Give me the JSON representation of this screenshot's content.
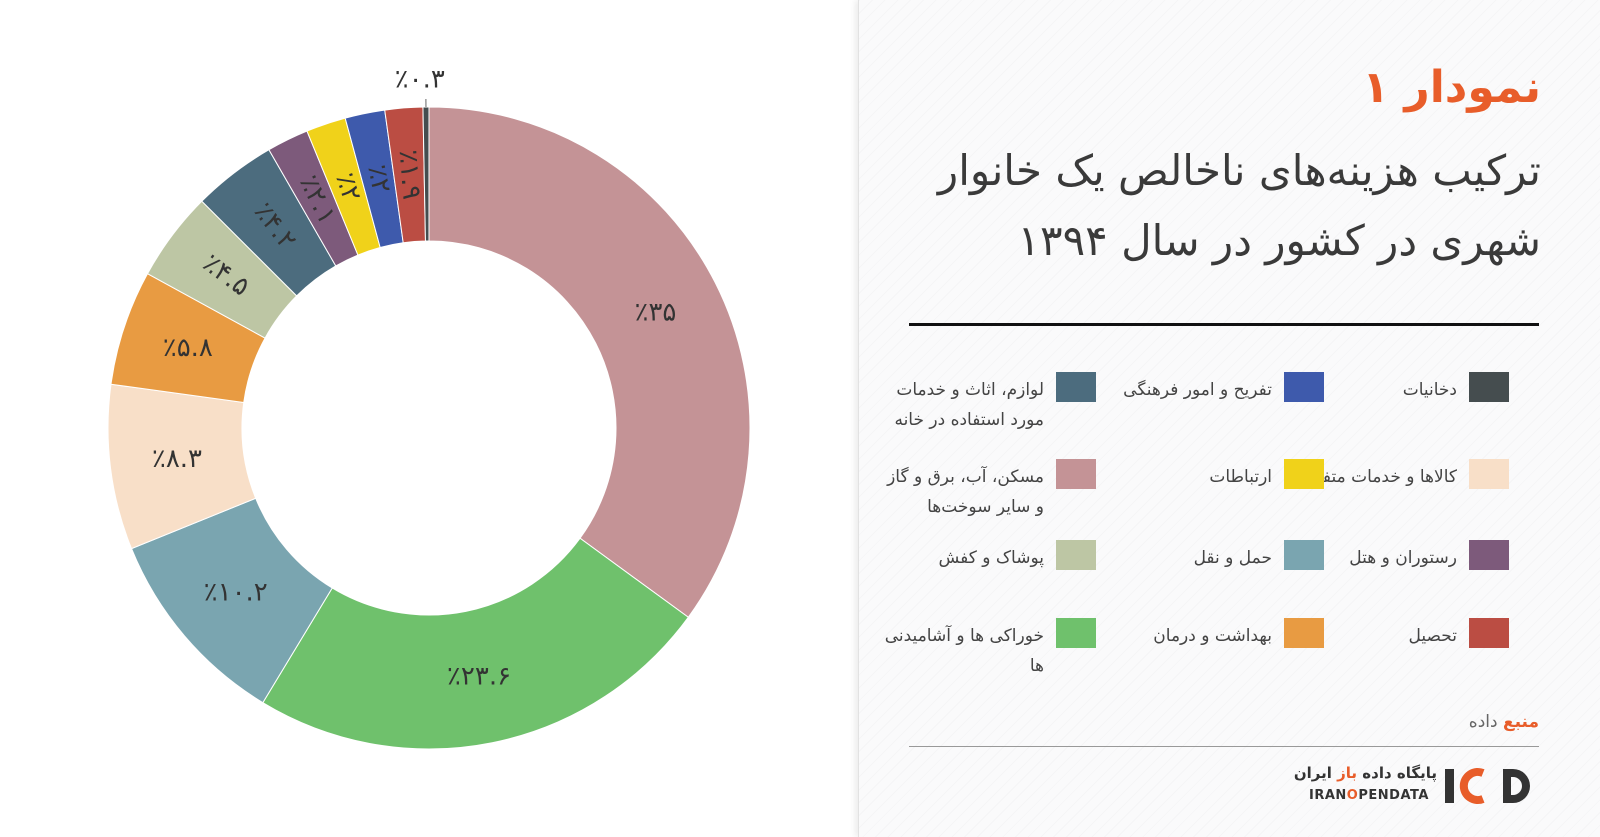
{
  "chart_data": {
    "type": "pie",
    "donut": true,
    "slices": [
      {
        "name": "مسکن، آب، برق و گاز و سایر سوخت‌ها",
        "value": 35,
        "label": "٪۳۵",
        "color": "#c49396"
      },
      {
        "name": "خوراکی ها و آشامیدنی ها",
        "value": 23.6,
        "label": "٪۲۳.۶",
        "color": "#6fc16c"
      },
      {
        "name": "حمل و نقل",
        "value": 10.2,
        "label": "٪۱۰.۲",
        "color": "#7aa5b0"
      },
      {
        "name": "کالاها و خدمات متفرقه",
        "value": 8.3,
        "label": "٪۸.۳",
        "color": "#f8dfc8"
      },
      {
        "name": "بهداشت و درمان",
        "value": 5.8,
        "label": "٪۵.۸",
        "color": "#e89b42"
      },
      {
        "name": "پوشاک و کفش",
        "value": 4.5,
        "label": "٪۴.۵",
        "color": "#bdc6a4"
      },
      {
        "name": "لوازم، اثاث و خدمات مورد استفاده در خانه",
        "value": 4.2,
        "label": "٪۴.۲",
        "color": "#4c6c7e"
      },
      {
        "name": "رستوران و هتل",
        "value": 2.1,
        "label": "٪۲.۱",
        "color": "#7d5a7b"
      },
      {
        "name": "ارتباطات",
        "value": 2,
        "label": "٪۲",
        "color": "#f0d21a"
      },
      {
        "name": "تفریح و امور فرهنگی",
        "value": 2,
        "label": "٪۲",
        "color": "#3e5aac"
      },
      {
        "name": "تحصیل",
        "value": 1.9,
        "label": "٪۱.۹",
        "color": "#bb4d43"
      },
      {
        "name": "دخانیات",
        "value": 0.3,
        "label": "٪۰.۳",
        "color": "#454d4f"
      }
    ]
  },
  "panel": {
    "chart_label": "نمودار ۱",
    "title": "ترکیب هزینه‌های ناخالص یک خانوار شهری در کشور در سال ۱۳۹۴"
  },
  "legend": [
    {
      "label": "دخانیات",
      "color": "#454d4f"
    },
    {
      "label": "تفریح و امور فرهنگی",
      "color": "#3e5aac"
    },
    {
      "label": "لوازم، اثاث و خدمات مورد استفاده در خانه",
      "color": "#4c6c7e"
    },
    {
      "label": "کالاها و خدمات متفرقه",
      "color": "#f8dfc8"
    },
    {
      "label": "ارتباطات",
      "color": "#f0d21a"
    },
    {
      "label": "مسکن، آب، برق و گاز و سایر سوخت‌ها",
      "color": "#c49396"
    },
    {
      "label": "رستوران و هتل",
      "color": "#7d5a7b"
    },
    {
      "label": "حمل و نقل",
      "color": "#7aa5b0"
    },
    {
      "label": "پوشاک و کفش",
      "color": "#bdc6a4"
    },
    {
      "label": "تحصیل",
      "color": "#bb4d43"
    },
    {
      "label": "بهداشت و درمان",
      "color": "#e89b42"
    },
    {
      "label": "خوراکی ها و آشامیدنی ها",
      "color": "#6fc16c"
    }
  ],
  "source": {
    "label_a": "منبع",
    "label_b": "داده"
  },
  "logo": {
    "fa_prefix": "پایگاه داده ",
    "fa_em": "باز",
    "fa_suffix": " ایران",
    "en_a": "IRAN",
    "en_o": "O",
    "en_b": "PENDATA",
    "mark_i": "I",
    "mark_d": "D",
    "accent": "#e85d2a"
  }
}
